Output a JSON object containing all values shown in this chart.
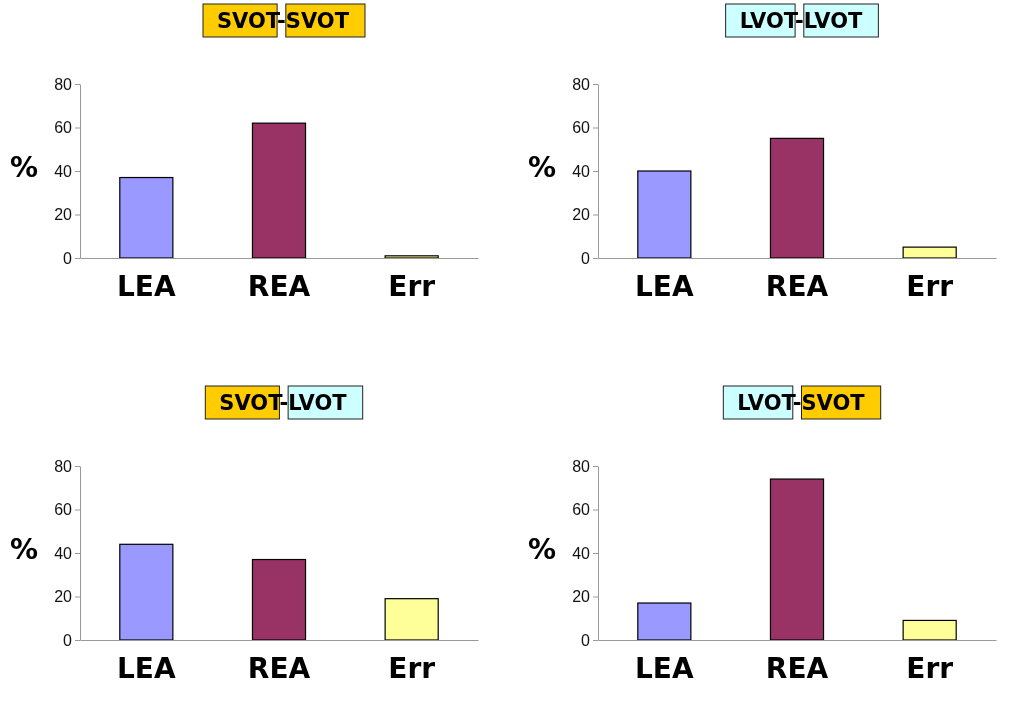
{
  "chart_data": [
    {
      "type": "bar",
      "title": "SVOT-SVOT",
      "ylabel": "%",
      "categories": [
        "LEA",
        "REA",
        "Err"
      ],
      "values": [
        37,
        62,
        1
      ],
      "colors": [
        "#9999ff",
        "#993366",
        "#ffff99"
      ],
      "ylim": [
        0,
        80
      ],
      "yticks": [
        0,
        20,
        40,
        60,
        80
      ]
    },
    {
      "type": "bar",
      "title": "LVOT-LVOT",
      "ylabel": "%",
      "categories": [
        "LEA",
        "REA",
        "Err"
      ],
      "values": [
        40,
        55,
        5
      ],
      "colors": [
        "#9999ff",
        "#993366",
        "#ffff99"
      ],
      "ylim": [
        0,
        80
      ],
      "yticks": [
        0,
        20,
        40,
        60,
        80
      ]
    },
    {
      "type": "bar",
      "title": "SVOT-LVOT",
      "ylabel": "%",
      "categories": [
        "LEA",
        "REA",
        "Err"
      ],
      "values": [
        44,
        37,
        19
      ],
      "colors": [
        "#9999ff",
        "#993366",
        "#ffff99"
      ],
      "ylim": [
        0,
        80
      ],
      "yticks": [
        0,
        20,
        40,
        60,
        80
      ]
    },
    {
      "type": "bar",
      "title": "LVOT-SVOT",
      "ylabel": "%",
      "categories": [
        "LEA",
        "REA",
        "Err"
      ],
      "values": [
        17,
        74,
        9
      ],
      "colors": [
        "#9999ff",
        "#993366",
        "#ffff99"
      ],
      "ylim": [
        0,
        80
      ],
      "yticks": [
        0,
        20,
        40,
        60,
        80
      ]
    }
  ]
}
